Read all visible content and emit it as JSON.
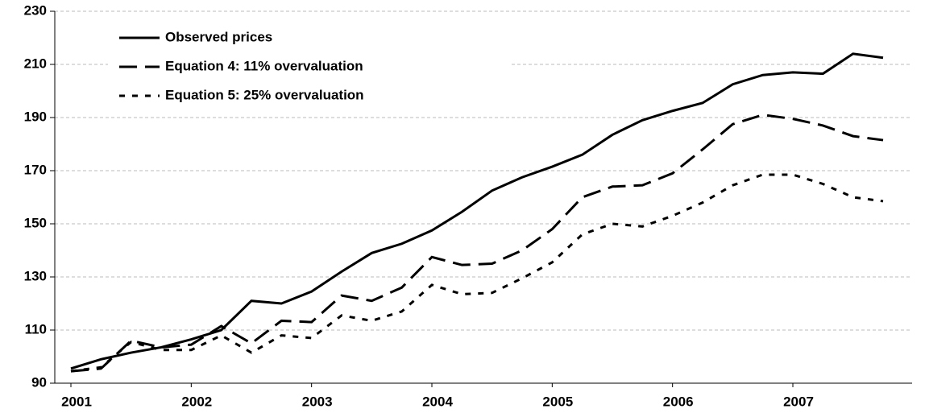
{
  "chart_data": {
    "type": "line",
    "categories": [
      "2001",
      null,
      null,
      null,
      "2002",
      null,
      null,
      null,
      "2003",
      null,
      null,
      null,
      "2004",
      null,
      null,
      null,
      "2005",
      null,
      null,
      null,
      "2006",
      null,
      null,
      null,
      "2007",
      null,
      null,
      null
    ],
    "series": [
      {
        "name": "Observed prices",
        "color": "#000000",
        "dash": "solid",
        "values": [
          95.5,
          99,
          101.5,
          103.5,
          106.5,
          110,
          121,
          120,
          124.5,
          132,
          139,
          142.5,
          147.5,
          154.5,
          162.5,
          167.5,
          171.5,
          176,
          183.5,
          189,
          192.5,
          195.5,
          202.5,
          206,
          207,
          206.5,
          214,
          212.5
        ]
      },
      {
        "name": "Equation 4: 11% overvaluation",
        "color": "#000000",
        "dash": "long",
        "values": [
          94.5,
          95.5,
          106,
          103.5,
          104.5,
          111.5,
          105,
          113.5,
          113,
          123,
          121,
          126,
          137.5,
          134.5,
          135,
          140,
          148,
          160,
          164,
          164.5,
          169,
          178,
          187.5,
          191,
          189.5,
          187,
          183,
          181.5
        ]
      },
      {
        "name": "Equation 5: 25% overvaluation",
        "color": "#000000",
        "dash": "short",
        "values": [
          94.5,
          96,
          105.5,
          102.5,
          102.5,
          108,
          101.5,
          108,
          107,
          115.5,
          113.5,
          117,
          127,
          123.5,
          124,
          129.5,
          135.5,
          146,
          150,
          149,
          153,
          158,
          164.5,
          168.5,
          168.5,
          165,
          160,
          158.5
        ]
      }
    ],
    "ylim": [
      90,
      230
    ],
    "yticks": [
      90,
      110,
      130,
      150,
      170,
      190,
      210,
      230
    ],
    "grid": true,
    "legend": "top-left"
  }
}
